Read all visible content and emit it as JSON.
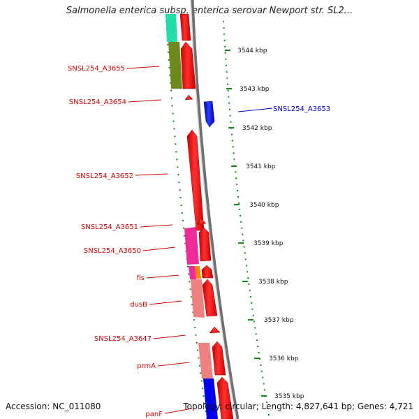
{
  "header": {
    "title": "Salmonella enterica subsp. enterica serovar Newport str. SL2..."
  },
  "footer": {
    "accession": "Accession: NC_011080",
    "topology": "Topology: circular; Length: 4,827,641 bp; Genes: 4,721"
  },
  "colors": {
    "red": "#ff0000",
    "blue": "#0000ee",
    "label_red": "#d40000",
    "label_blue": "#0000cc"
  },
  "gene_labels": [
    {
      "text": "SNSL254_A3655",
      "strand": "minus"
    },
    {
      "text": "SNSL254_A3654",
      "strand": "minus"
    },
    {
      "text": "SNSL254_A3653",
      "strand": "plus"
    },
    {
      "text": "SNSL254_A3652",
      "strand": "minus"
    },
    {
      "text": "SNSL254_A3651",
      "strand": "minus"
    },
    {
      "text": "SNSL254_A3650",
      "strand": "minus"
    },
    {
      "text": "fis",
      "strand": "minus"
    },
    {
      "text": "dusB",
      "strand": "minus"
    },
    {
      "text": "SNSL254_A3647",
      "strand": "minus"
    },
    {
      "text": "prmA",
      "strand": "minus"
    },
    {
      "text": "panF",
      "strand": "minus"
    }
  ],
  "ticks": [
    "3544 kbp",
    "3543 kbp",
    "3542 kbp",
    "3541 kbp",
    "3540 kbp",
    "3539 kbp",
    "3538 kbp",
    "3537 kbp",
    "3536 kbp",
    "3535 kbp"
  ]
}
